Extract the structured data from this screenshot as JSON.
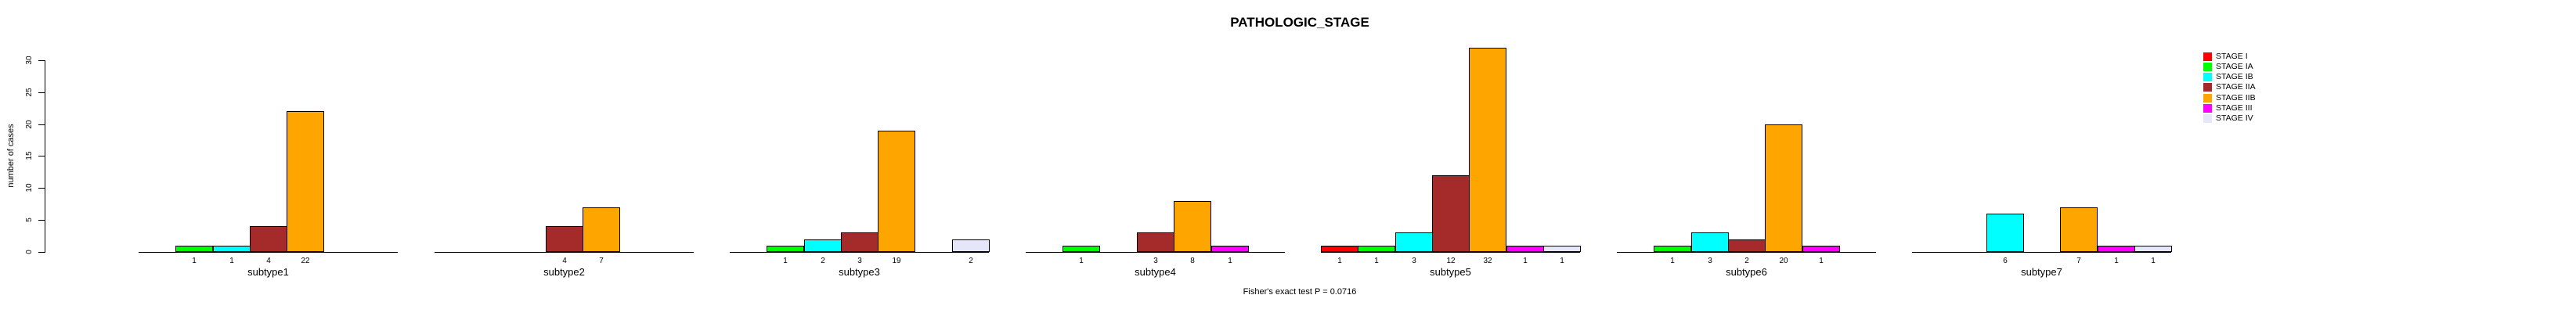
{
  "chart_data": {
    "type": "bar",
    "title": "PATHOLOGIC_STAGE",
    "ylabel": "number of cases",
    "xlabel": "",
    "ylim": [
      0,
      30
    ],
    "yticks": [
      0,
      5,
      10,
      15,
      20,
      25,
      30
    ],
    "grid": false,
    "legend_position": "top-right",
    "annotation": "Fisher's exact test P = 0.0716",
    "stages": [
      "STAGE I",
      "STAGE IA",
      "STAGE IB",
      "STAGE IIA",
      "STAGE IIB",
      "STAGE III",
      "STAGE IV"
    ],
    "stage_colors": [
      "#FF0000",
      "#00FF00",
      "#00FFFF",
      "#A52A2A",
      "#FFA500",
      "#FF00FF",
      "#E6E6FA"
    ],
    "categories": [
      "subtype1",
      "subtype2",
      "subtype3",
      "subtype4",
      "subtype5",
      "subtype6",
      "subtype7"
    ],
    "series": [
      {
        "name": "STAGE I",
        "values": [
          0,
          0,
          0,
          0,
          1,
          0,
          0
        ]
      },
      {
        "name": "STAGE IA",
        "values": [
          1,
          0,
          1,
          1,
          1,
          1,
          0
        ]
      },
      {
        "name": "STAGE IB",
        "values": [
          1,
          0,
          2,
          0,
          3,
          3,
          6
        ]
      },
      {
        "name": "STAGE IIA",
        "values": [
          4,
          4,
          3,
          3,
          12,
          2,
          0
        ]
      },
      {
        "name": "STAGE IIB",
        "values": [
          22,
          7,
          19,
          8,
          32,
          20,
          7
        ]
      },
      {
        "name": "STAGE III",
        "values": [
          0,
          0,
          0,
          1,
          1,
          1,
          1
        ]
      },
      {
        "name": "STAGE IV",
        "values": [
          0,
          0,
          2,
          0,
          1,
          0,
          1
        ]
      }
    ],
    "bar_value_labels_shown": true,
    "axis_color": "#000000",
    "background_color": "#FFFFFF"
  }
}
